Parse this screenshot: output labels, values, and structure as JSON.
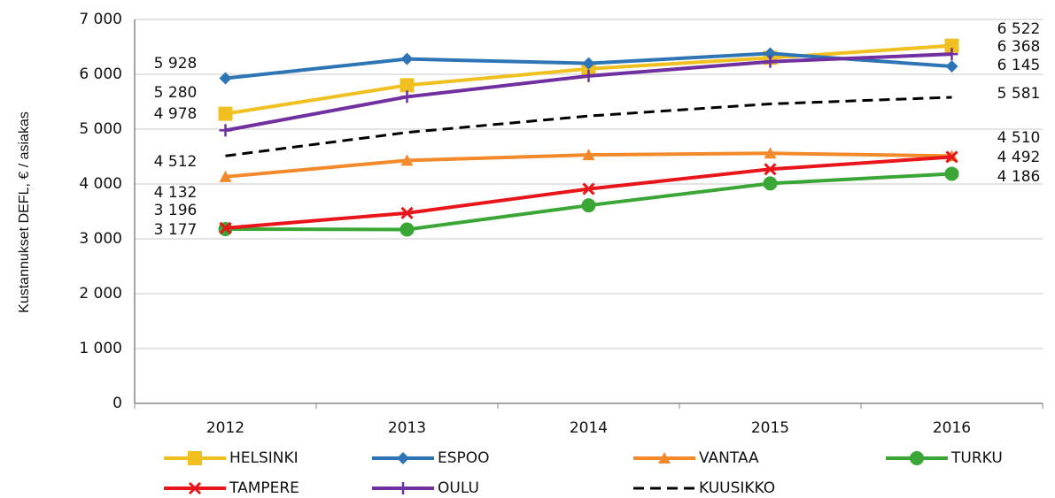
{
  "chart_data": {
    "type": "line",
    "y_axis_label": "Kustannukset DEFL, € / asiakas",
    "categories": [
      "2012",
      "2013",
      "2014",
      "2015",
      "2016"
    ],
    "ylim": [
      0,
      7000
    ],
    "yticks": [
      0,
      {
        "value": 1000,
        "label": "1 000"
      },
      {
        "value": 2000,
        "label": "2 000"
      },
      {
        "value": 3000,
        "label": "3 000"
      },
      {
        "value": 4000,
        "label": "4 000"
      },
      {
        "value": 5000,
        "label": "5 000"
      },
      {
        "value": 6000,
        "label": "6 000"
      },
      {
        "value": 7000,
        "label": "7 000"
      }
    ],
    "grid": true,
    "legend": "bottom",
    "series": [
      {
        "name": "HELSINKI",
        "color": "#f0c020",
        "marker": "square",
        "values": [
          5280,
          5800,
          6100,
          6300,
          6522
        ],
        "value_labels": [
          "5 280",
          null,
          null,
          null,
          "6 522"
        ]
      },
      {
        "name": "ESPOO",
        "color": "#2e75b6",
        "marker": "diamond",
        "values": [
          5928,
          6280,
          6200,
          6380,
          6145
        ],
        "value_labels": [
          "5 928",
          null,
          null,
          null,
          "6 145"
        ]
      },
      {
        "name": "VANTAA",
        "color": "#f28a2c",
        "marker": "triangle",
        "values": [
          4132,
          4430,
          4530,
          4560,
          4510
        ],
        "value_labels": [
          "4 132",
          null,
          null,
          null,
          "4 510"
        ]
      },
      {
        "name": "TURKU",
        "color": "#3aa635",
        "marker": "circle",
        "values": [
          3177,
          3170,
          3610,
          4010,
          4186
        ],
        "value_labels": [
          "3 177",
          null,
          null,
          null,
          "4 186"
        ]
      },
      {
        "name": "TAMPERE",
        "color": "#e8151b",
        "marker": "x",
        "values": [
          3196,
          3470,
          3910,
          4270,
          4492
        ],
        "value_labels": [
          "3 196",
          null,
          null,
          null,
          "4 492"
        ]
      },
      {
        "name": "OULU",
        "color": "#7030a0",
        "marker": "plus",
        "values": [
          4978,
          5590,
          5970,
          6230,
          6368
        ],
        "value_labels": [
          "4 978",
          null,
          null,
          null,
          "6 368"
        ]
      },
      {
        "name": "KUUSIKKO",
        "color": "#000000",
        "dashed": true,
        "values": [
          4512,
          4940,
          5240,
          5460,
          5581
        ],
        "value_labels": [
          "4 512",
          null,
          null,
          null,
          "5 581"
        ]
      }
    ]
  }
}
